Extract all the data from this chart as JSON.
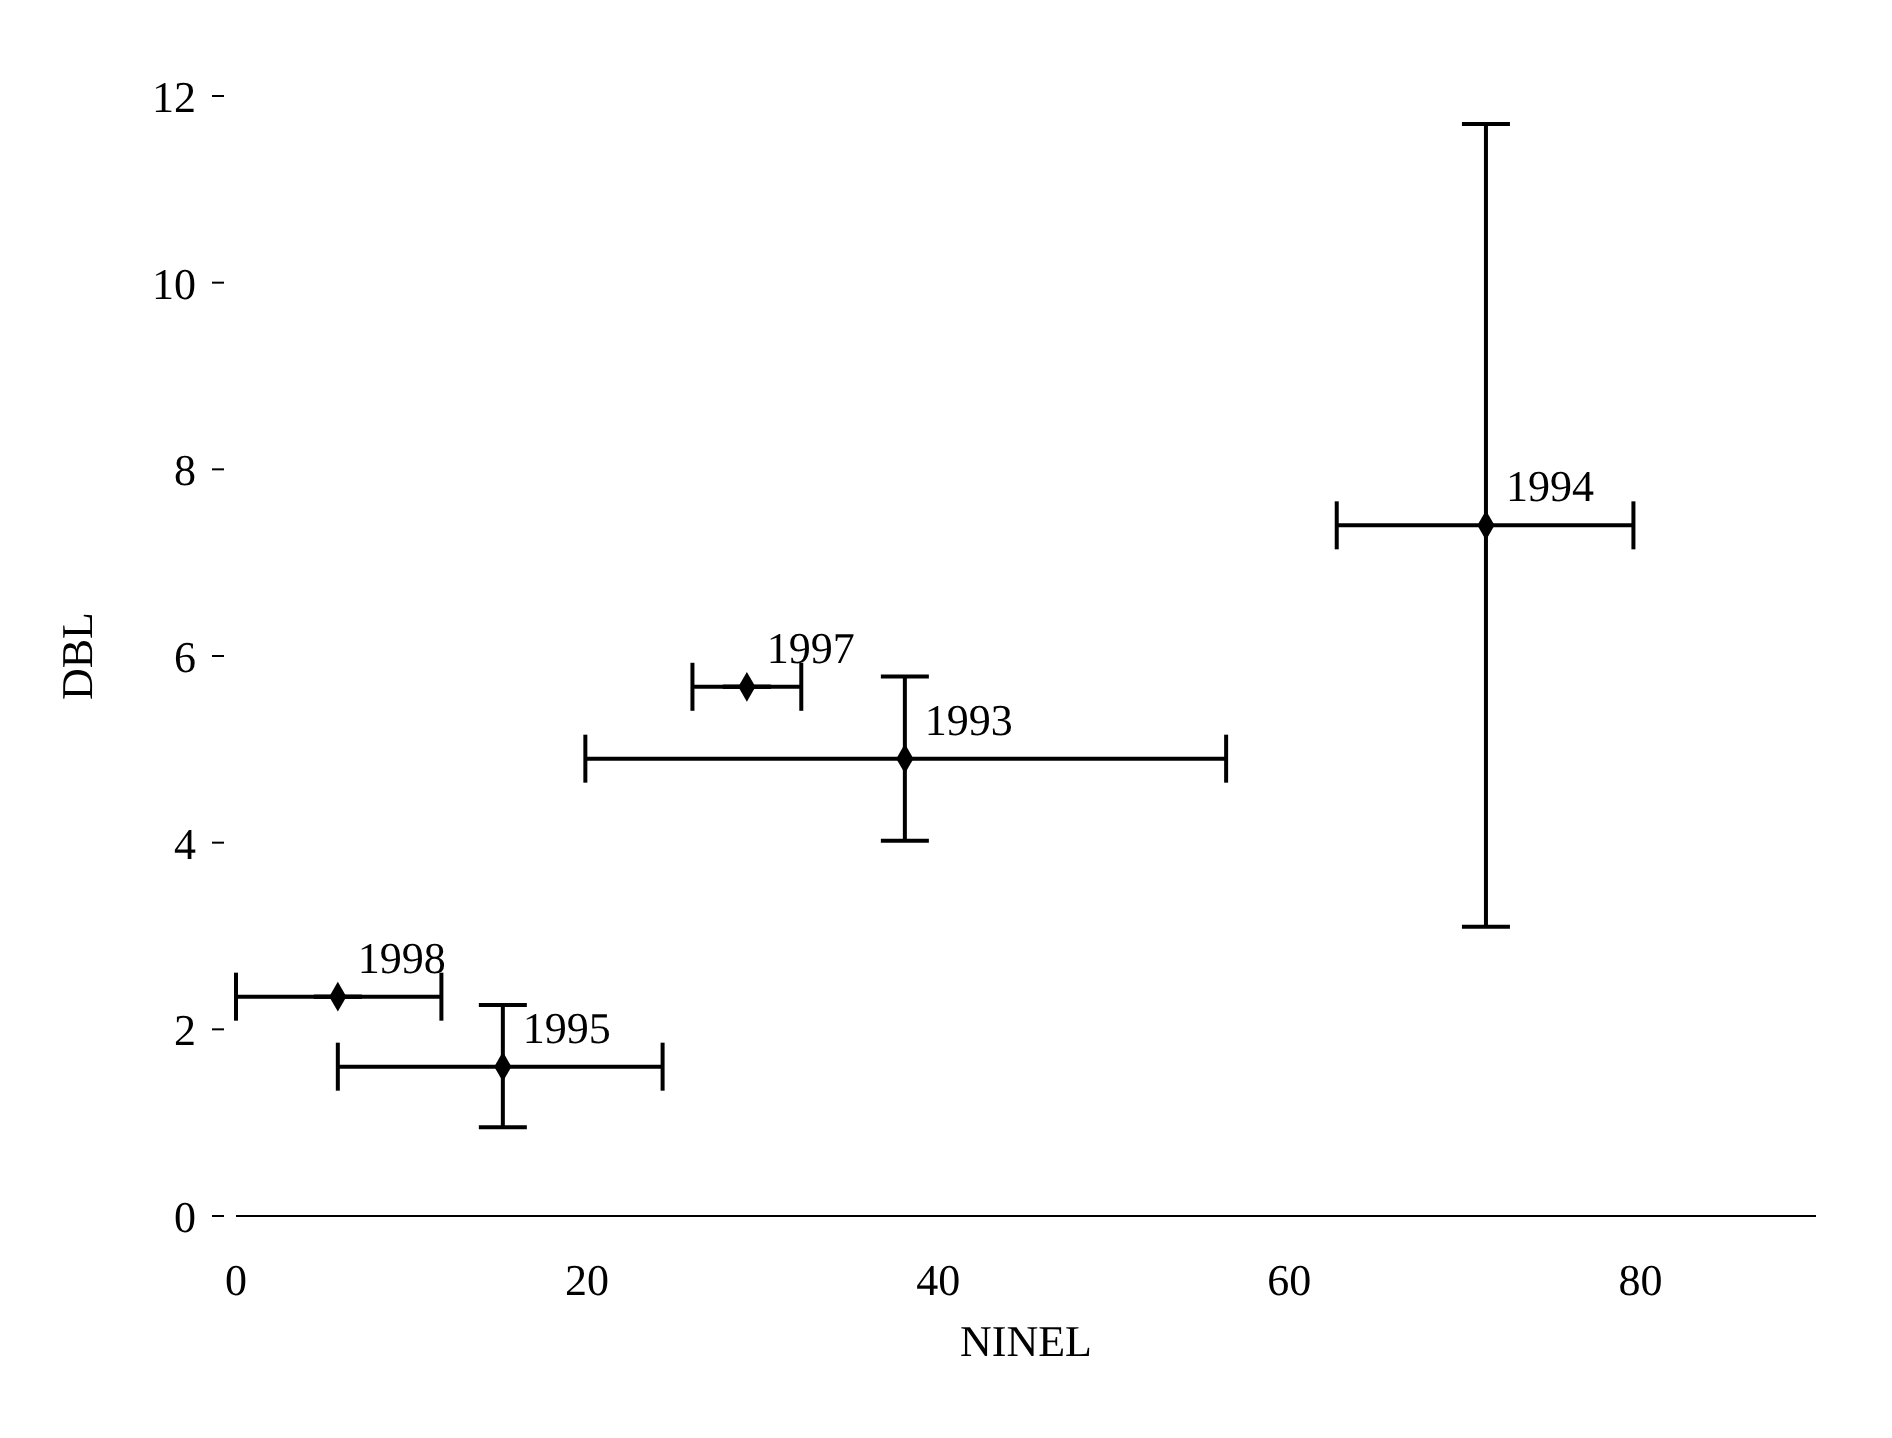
{
  "chart_data": {
    "type": "scatter",
    "xlabel": "NINEL",
    "ylabel": "DBL",
    "x": [
      5.8,
      15.2,
      29.1,
      38.1,
      71.2
    ],
    "series": [
      {
        "color": "#000000",
        "values": [
          2.35,
          1.6,
          5.67,
          4.9,
          7.4
        ],
        "errors": [
          null,
          [
            0.95,
            2.26
          ],
          null,
          [
            4.02,
            5.78
          ],
          [
            3.1,
            11.7
          ]
        ],
        "xerrors": [
          [
            0,
            11.7
          ],
          [
            5.8,
            24.3
          ],
          [
            26.0,
            32.2
          ],
          [
            19.9,
            56.4
          ],
          [
            62.7,
            79.6
          ]
        ]
      }
    ],
    "xlim": [
      0,
      90
    ],
    "xticks": [
      0,
      20,
      40,
      60,
      80
    ],
    "ylim": [
      0,
      12
    ],
    "yticks": [
      0,
      2,
      4,
      6,
      8,
      10,
      12
    ],
    "marker": "diamond",
    "grid": false,
    "annotations": [
      {
        "text": "1998",
        "x": 5.8,
        "y": 2.35
      },
      {
        "text": "1995",
        "x": 15.2,
        "y": 1.6
      },
      {
        "text": "1997",
        "x": 29.1,
        "y": 5.67
      },
      {
        "text": "1993",
        "x": 38.1,
        "y": 4.9
      },
      {
        "text": "1994",
        "x": 71.2,
        "y": 7.4
      }
    ]
  }
}
